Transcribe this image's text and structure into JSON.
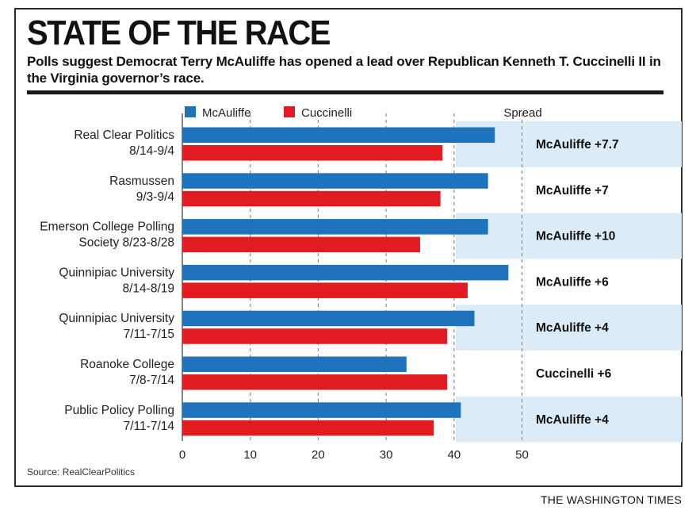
{
  "header": {
    "title": "STATE OF THE RACE",
    "subtitle": "Polls suggest Democrat Terry McAuliffe has opened a lead over Republican Kenneth T. Cuccinelli II in the Virginia governor’s race."
  },
  "footer": {
    "source": "Source: RealClearPolitics",
    "brand": "THE WASHINGTON TIMES"
  },
  "colors": {
    "mcauliffe": "#1f73bd",
    "cuccinelli": "#e11b22",
    "spread_band": "#dcebf8"
  },
  "chart_data": {
    "type": "bar",
    "orientation": "horizontal",
    "spread_header": "Spread",
    "legend_placement": "top",
    "xlim": [
      0,
      50
    ],
    "xticks": [
      0,
      10,
      20,
      30,
      40,
      50
    ],
    "grid": true,
    "categories": [
      {
        "label_lines": [
          "Real Clear Politics",
          "8/14-9/4"
        ],
        "spread": "McAuliffe +7.7"
      },
      {
        "label_lines": [
          "Rasmussen",
          "9/3-9/4"
        ],
        "spread": "McAuliffe +7"
      },
      {
        "label_lines": [
          "Emerson College Polling",
          "Society    8/23-8/28"
        ],
        "spread": "McAuliffe +10"
      },
      {
        "label_lines": [
          "Quinnipiac University",
          "8/14-8/19"
        ],
        "spread": "McAuliffe +6"
      },
      {
        "label_lines": [
          "Quinnipiac University",
          "7/11-7/15"
        ],
        "spread": "McAuliffe +4"
      },
      {
        "label_lines": [
          "Roanoke College",
          "7/8-7/14"
        ],
        "spread": "Cuccinelli +6"
      },
      {
        "label_lines": [
          "Public Policy Polling",
          "7/11-7/14"
        ],
        "spread": "McAuliffe +4"
      }
    ],
    "series": [
      {
        "name": "McAuliffe",
        "color": "#1f73bd",
        "values": [
          46,
          45,
          45,
          48,
          43,
          33,
          41
        ]
      },
      {
        "name": "Cuccinelli",
        "color": "#e11b22",
        "values": [
          38.3,
          38,
          35,
          42,
          39,
          39,
          37
        ]
      }
    ]
  }
}
